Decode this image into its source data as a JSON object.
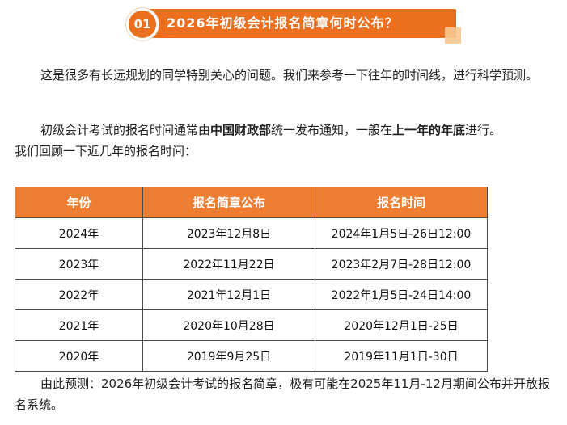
{
  "header": {
    "number": "01",
    "title": "2026年初级会计报名简章何时公布？"
  },
  "paragraphs": {
    "p1": "这是很多有长远规划的同学特别关心的问题。我们来参考一下往年的时间线，进行科学预测。",
    "p2_part1": "初级会计考试的报名时间通常由",
    "p2_bold1": "中国财政部",
    "p2_part2": "统一发布通知，一般在",
    "p2_bold2": "上一年的年底",
    "p2_part3": "进行。",
    "p3": "我们回顾一下近几年的报名时间：",
    "p4": "由此预测：2026年初级会计考试的报名简章，极有可能在2025年11月-12月期间公布并开放报名系统。"
  },
  "table": {
    "headers": [
      "年份",
      "报名简章公布",
      "报名时间"
    ],
    "rows": [
      [
        "2024年",
        "2023年12月8日",
        "2024年1月5日-26日12:00"
      ],
      [
        "2023年",
        "2022年11月22日",
        "2023年2月7日-28日12:00"
      ],
      [
        "2022年",
        "2021年12月1日",
        "2022年1月5日-24日14:00"
      ],
      [
        "2021年",
        "2020年10月28日",
        "2020年12月1日-25日"
      ],
      [
        "2020年",
        "2019年9月25日",
        "2019年11月1日-30日"
      ]
    ]
  },
  "colors": {
    "accent": "#ea6f1e",
    "table_header": "#ed7d31",
    "accent_light": "#f6c890"
  }
}
